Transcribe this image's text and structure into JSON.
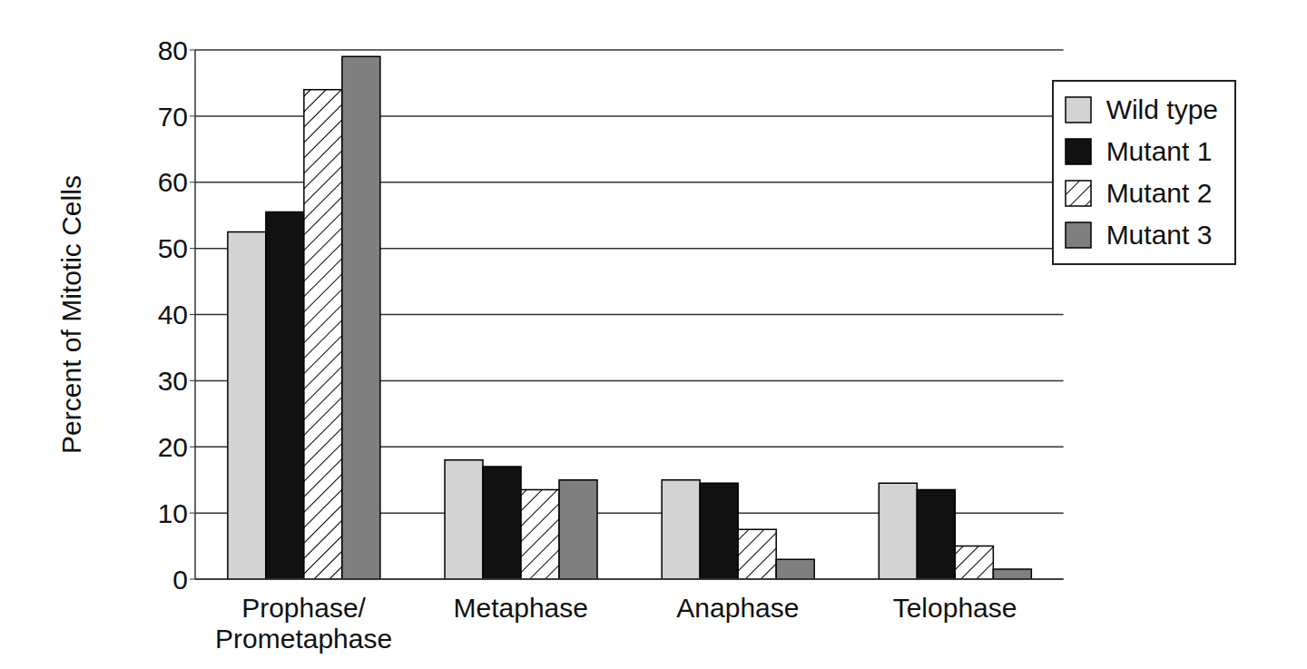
{
  "chart_data": {
    "type": "bar",
    "y_label": "Percent of Mitotic Cells",
    "categories": [
      "Prophase/\nPrometaphase",
      "Metaphase",
      "Anaphase",
      "Telophase"
    ],
    "series": [
      {
        "name": "Wild type",
        "color": "#d3d3d3",
        "values": [
          52.5,
          18,
          15,
          14.5
        ]
      },
      {
        "name": "Mutant 1",
        "color": "#111111",
        "values": [
          55.5,
          17,
          14.5,
          13.5
        ]
      },
      {
        "name": "Mutant 2",
        "color": "#ffffff",
        "marker": "hatch",
        "values": [
          74,
          13.5,
          7.5,
          5
        ]
      },
      {
        "name": "Mutant 3",
        "color": "#7f7f7f",
        "values": [
          79,
          15,
          3,
          1.5
        ]
      }
    ],
    "ylim": [
      0,
      80
    ],
    "yticks": [
      0,
      10,
      20,
      30,
      40,
      50,
      60,
      70,
      80
    ],
    "grid": true,
    "legend": "upper right"
  }
}
